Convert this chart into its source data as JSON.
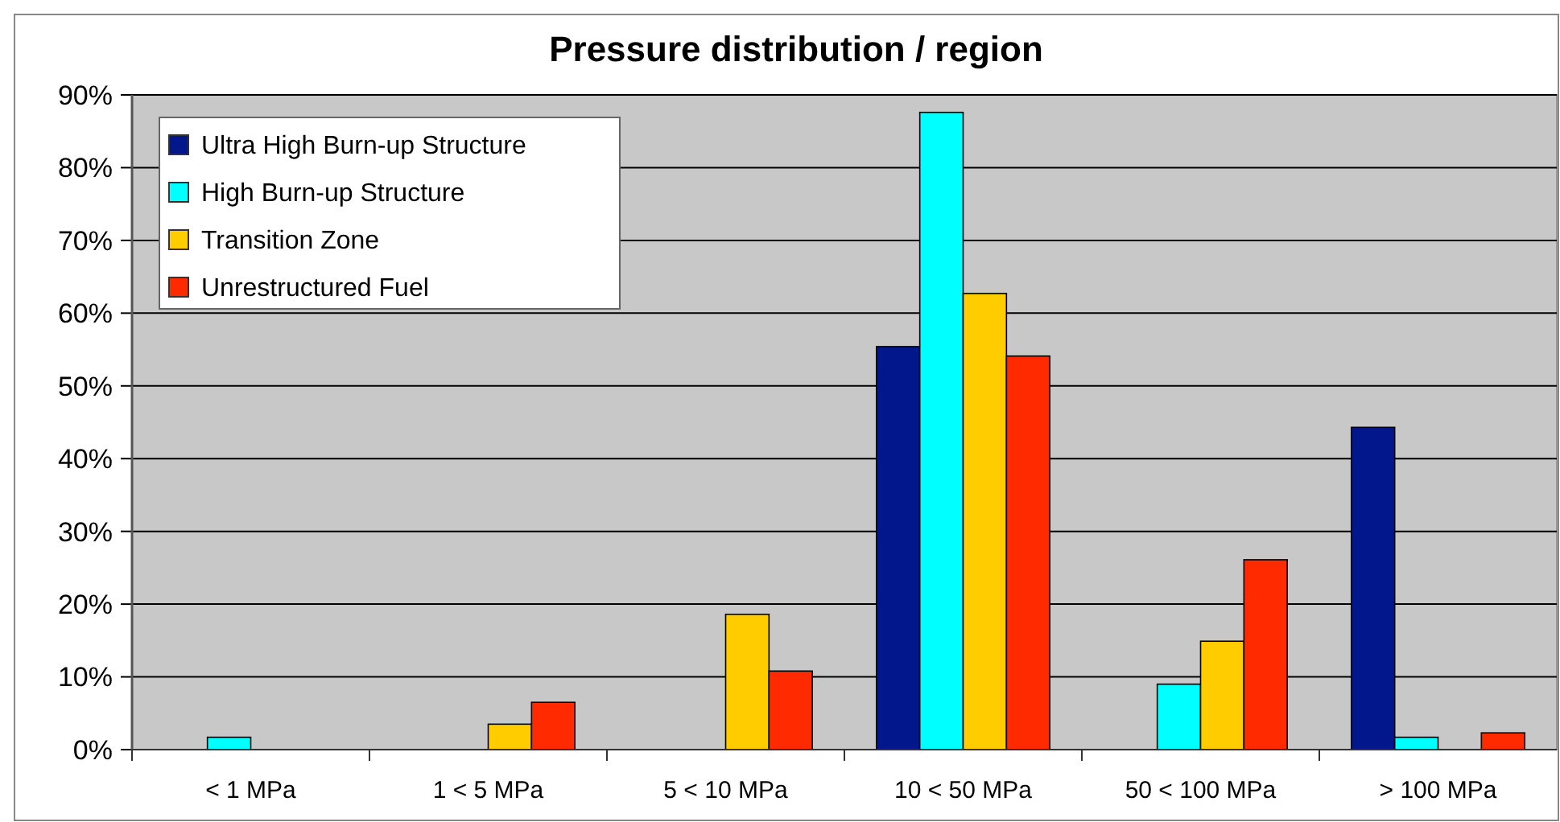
{
  "chart_data": {
    "type": "bar",
    "title": "Pressure distribution / region",
    "categories": [
      "< 1 MPa",
      "1 < 5 MPa",
      "5 < 10 MPa",
      "10 < 50 MPa",
      "50 < 100 MPa",
      "> 100 MPa"
    ],
    "series": [
      {
        "name": "Ultra High Burn-up Structure",
        "color": "#02178c",
        "values": [
          0,
          0,
          0,
          55.4,
          0,
          44.3
        ]
      },
      {
        "name": "High Burn-up Structure",
        "color": "#00ffff",
        "values": [
          1.7,
          0,
          0,
          87.6,
          9.0,
          1.7
        ]
      },
      {
        "name": "Transition Zone",
        "color": "#ffcc00",
        "values": [
          0,
          3.5,
          18.6,
          62.7,
          14.9,
          0
        ]
      },
      {
        "name": "Unrestructured Fuel",
        "color": "#ff2a00",
        "values": [
          0,
          6.5,
          10.8,
          54.1,
          26.1,
          2.3
        ]
      }
    ],
    "ylim": [
      0,
      90
    ],
    "yticks": [
      {
        "value": 0,
        "label": "0%"
      },
      {
        "value": 10,
        "label": "10%"
      },
      {
        "value": 20,
        "label": "20%"
      },
      {
        "value": 30,
        "label": "30%"
      },
      {
        "value": 40,
        "label": "40%"
      },
      {
        "value": 50,
        "label": "50%"
      },
      {
        "value": 60,
        "label": "60%"
      },
      {
        "value": 70,
        "label": "70%"
      },
      {
        "value": 80,
        "label": "80%"
      },
      {
        "value": 90,
        "label": "90%"
      }
    ],
    "grid": "y",
    "legend": "top left"
  }
}
